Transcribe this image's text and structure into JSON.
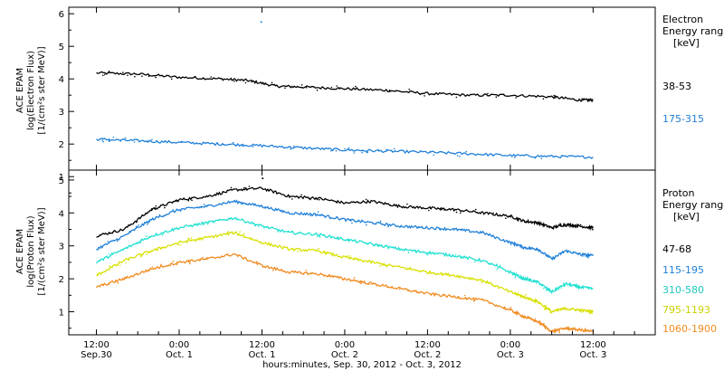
{
  "colors": {
    "black": "#000000",
    "blue": "#1e7fd8",
    "cyan": "#1ee0d0",
    "yellow": "#d8e000",
    "orange": "#f08a1e"
  },
  "chart_data": [
    {
      "type": "line",
      "panel": "electron",
      "ylabel": [
        "ACE EPAM",
        "log(Electron Flux)",
        "[1/(cm²s ster MeV)]"
      ],
      "ylim": [
        1.2,
        6.2
      ],
      "yticks": [
        "1",
        "2",
        "3",
        "4",
        "5",
        "6"
      ],
      "legend_title": [
        "Electron",
        "Energy ranges",
        "[keV]"
      ],
      "outlier": {
        "x": 23.9,
        "y": 5.75
      },
      "series": [
        {
          "name": "38-53",
          "color": "#000000",
          "x": [
            0,
            6,
            12,
            18,
            22,
            26,
            30,
            36,
            42,
            48,
            54,
            60,
            66,
            70,
            72
          ],
          "y": [
            4.18,
            4.15,
            4.05,
            4.0,
            3.95,
            3.78,
            3.75,
            3.7,
            3.65,
            3.55,
            3.5,
            3.5,
            3.45,
            3.35,
            3.35
          ]
        },
        {
          "name": "175-315",
          "color": "#1e7fd8",
          "x": [
            0,
            6,
            12,
            18,
            24,
            30,
            36,
            42,
            48,
            54,
            60,
            66,
            72
          ],
          "y": [
            2.15,
            2.1,
            2.05,
            2.0,
            1.95,
            1.88,
            1.82,
            1.78,
            1.75,
            1.7,
            1.65,
            1.62,
            1.6
          ]
        }
      ]
    },
    {
      "type": "line",
      "panel": "proton",
      "ylabel": [
        "ACE EPAM",
        "log(Proton Flux)",
        "[1/(cm²s ster MeV)]"
      ],
      "ylim": [
        0.3,
        5.3
      ],
      "yticks": [
        "1",
        "2",
        "3",
        "4",
        "5"
      ],
      "legend_title": [
        "Proton",
        "Energy ranges",
        "[keV]"
      ],
      "outlier": {
        "x": 24.1,
        "y": 5.05
      },
      "series": [
        {
          "name": "47-68",
          "color": "#000000",
          "x": [
            0,
            4,
            8,
            12,
            16,
            20,
            24,
            28,
            32,
            36,
            40,
            44,
            48,
            52,
            56,
            60,
            62,
            64,
            66,
            68,
            70,
            72
          ],
          "y": [
            3.3,
            3.5,
            4.1,
            4.4,
            4.5,
            4.7,
            4.75,
            4.5,
            4.45,
            4.3,
            4.35,
            4.2,
            4.15,
            4.1,
            4.0,
            3.9,
            3.75,
            3.7,
            3.55,
            3.65,
            3.6,
            3.55
          ]
        },
        {
          "name": "115-195",
          "color": "#1e7fd8",
          "x": [
            0,
            4,
            8,
            12,
            16,
            20,
            24,
            28,
            32,
            36,
            40,
            44,
            48,
            52,
            56,
            60,
            62,
            64,
            66,
            68,
            70,
            72
          ],
          "y": [
            2.9,
            3.3,
            3.8,
            4.1,
            4.2,
            4.35,
            4.2,
            4.0,
            3.95,
            3.8,
            3.7,
            3.6,
            3.55,
            3.5,
            3.4,
            3.1,
            2.95,
            2.9,
            2.6,
            2.85,
            2.75,
            2.7
          ]
        },
        {
          "name": "310-580",
          "color": "#1ee0d0",
          "x": [
            0,
            4,
            8,
            12,
            16,
            20,
            24,
            28,
            32,
            36,
            40,
            44,
            48,
            52,
            56,
            60,
            62,
            64,
            66,
            68,
            70,
            72
          ],
          "y": [
            2.5,
            2.9,
            3.3,
            3.55,
            3.7,
            3.85,
            3.6,
            3.4,
            3.35,
            3.2,
            3.05,
            2.9,
            2.8,
            2.7,
            2.55,
            2.2,
            2.0,
            1.9,
            1.6,
            1.85,
            1.75,
            1.7
          ]
        },
        {
          "name": "795-1193",
          "color": "#d8e000",
          "x": [
            0,
            4,
            8,
            12,
            16,
            20,
            24,
            28,
            32,
            36,
            40,
            44,
            48,
            52,
            56,
            60,
            62,
            64,
            66,
            68,
            70,
            72
          ],
          "y": [
            2.1,
            2.55,
            2.85,
            3.1,
            3.25,
            3.4,
            3.1,
            2.9,
            2.85,
            2.65,
            2.5,
            2.35,
            2.2,
            2.1,
            1.95,
            1.6,
            1.45,
            1.3,
            1.0,
            1.1,
            1.05,
            1.0
          ]
        },
        {
          "name": "1060-1900",
          "color": "#f08a1e",
          "x": [
            0,
            4,
            8,
            12,
            16,
            20,
            24,
            28,
            32,
            36,
            40,
            44,
            48,
            52,
            56,
            60,
            62,
            64,
            66,
            68,
            70,
            72
          ],
          "y": [
            1.75,
            2.0,
            2.3,
            2.5,
            2.6,
            2.75,
            2.4,
            2.2,
            2.15,
            2.0,
            1.85,
            1.7,
            1.55,
            1.45,
            1.35,
            1.05,
            0.85,
            0.7,
            0.4,
            0.5,
            0.45,
            0.4
          ]
        }
      ]
    }
  ],
  "x_axis": {
    "xlim": [
      -4,
      81
    ],
    "ticks": [
      {
        "x": 0,
        "top": "12:00",
        "bottom": "Sep.30"
      },
      {
        "x": 12,
        "top": "0:00",
        "bottom": "Oct. 1"
      },
      {
        "x": 24,
        "top": "12:00",
        "bottom": "Oct. 1"
      },
      {
        "x": 36,
        "top": "0:00",
        "bottom": "Oct. 2"
      },
      {
        "x": 48,
        "top": "12:00",
        "bottom": "Oct. 2"
      },
      {
        "x": 60,
        "top": "0:00",
        "bottom": "Oct. 3"
      },
      {
        "x": 72,
        "top": "12:00",
        "bottom": "Oct. 3"
      }
    ],
    "label": "hours:minutes, Sep. 30, 2012 - Oct. 3, 2012"
  }
}
